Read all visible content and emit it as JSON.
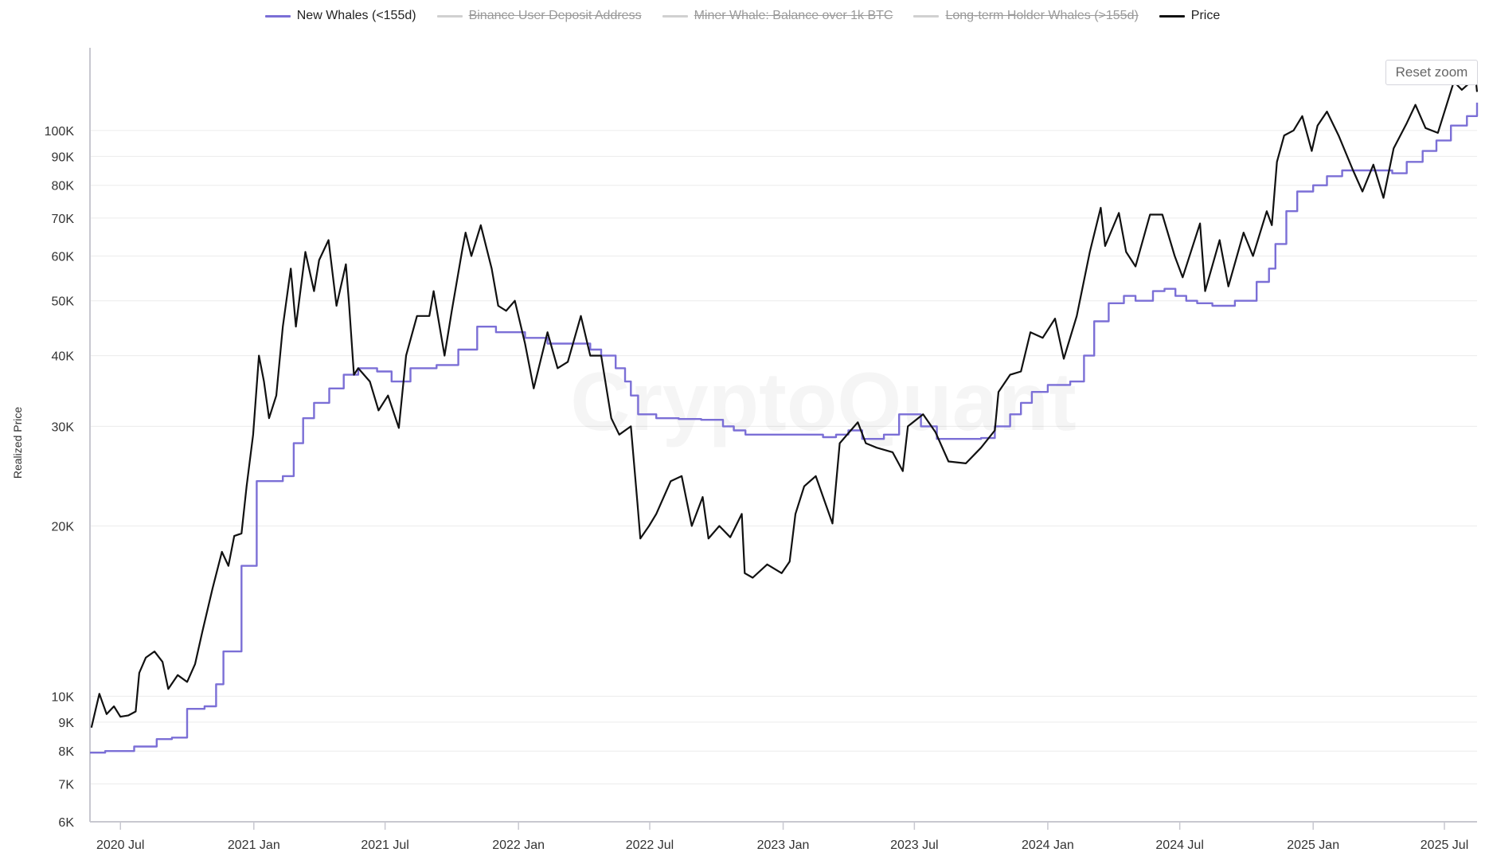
{
  "chart_data": {
    "type": "line",
    "title": "",
    "xlabel": "",
    "ylabel": "Realized Price",
    "y_scale": "log",
    "ylim": [
      6000,
      140000
    ],
    "xlim": [
      "2020-05-20",
      "2025-08-15"
    ],
    "grid": true,
    "legend_placement": "top-center",
    "watermark": "CryptoQuant",
    "reset_zoom_label": "Reset zoom",
    "y_ticks": [
      {
        "value": 6000,
        "label": "6K"
      },
      {
        "value": 7000,
        "label": "7K"
      },
      {
        "value": 8000,
        "label": "8K"
      },
      {
        "value": 9000,
        "label": "9K"
      },
      {
        "value": 10000,
        "label": "10K"
      },
      {
        "value": 20000,
        "label": "20K"
      },
      {
        "value": 30000,
        "label": "30K"
      },
      {
        "value": 40000,
        "label": "40K"
      },
      {
        "value": 50000,
        "label": "50K"
      },
      {
        "value": 60000,
        "label": "60K"
      },
      {
        "value": 70000,
        "label": "70K"
      },
      {
        "value": 80000,
        "label": "80K"
      },
      {
        "value": 90000,
        "label": "90K"
      },
      {
        "value": 100000,
        "label": "100K"
      }
    ],
    "x_ticks": [
      {
        "date": "2020-07-01",
        "label": "2020 Jul"
      },
      {
        "date": "2021-01-01",
        "label": "2021 Jan"
      },
      {
        "date": "2021-07-01",
        "label": "2021 Jul"
      },
      {
        "date": "2022-01-01",
        "label": "2022 Jan"
      },
      {
        "date": "2022-07-01",
        "label": "2022 Jul"
      },
      {
        "date": "2023-01-01",
        "label": "2023 Jan"
      },
      {
        "date": "2023-07-01",
        "label": "2023 Jul"
      },
      {
        "date": "2024-01-01",
        "label": "2024 Jan"
      },
      {
        "date": "2024-07-01",
        "label": "2024 Jul"
      },
      {
        "date": "2025-01-01",
        "label": "2025 Jan"
      },
      {
        "date": "2025-07-01",
        "label": "2025 Jul"
      }
    ],
    "legend": [
      {
        "name": "New Whales (<155d)",
        "color": "#7b6fd6",
        "visible": true
      },
      {
        "name": "Binance User Deposit Address",
        "color": "#cccccc",
        "visible": false
      },
      {
        "name": "Miner Whale: Balance over 1k BTC",
        "color": "#cccccc",
        "visible": false
      },
      {
        "name": "Long-term Holder Whales (>155d)",
        "color": "#cccccc",
        "visible": false
      },
      {
        "name": "Price",
        "color": "#111111",
        "visible": true
      }
    ],
    "series": [
      {
        "name": "New Whales (<155d)",
        "color": "#7b6fd6",
        "step": true,
        "points": [
          [
            "2020-05-20",
            7950
          ],
          [
            "2020-06-10",
            8000
          ],
          [
            "2020-07-20",
            8150
          ],
          [
            "2020-08-20",
            8400
          ],
          [
            "2020-09-10",
            8450
          ],
          [
            "2020-10-01",
            9500
          ],
          [
            "2020-10-25",
            9600
          ],
          [
            "2020-11-10",
            10500
          ],
          [
            "2020-11-20",
            12000
          ],
          [
            "2020-12-10",
            12000
          ],
          [
            "2020-12-15",
            17000
          ],
          [
            "2021-01-05",
            24000
          ],
          [
            "2021-01-25",
            24000
          ],
          [
            "2021-02-10",
            24500
          ],
          [
            "2021-02-25",
            28000
          ],
          [
            "2021-03-10",
            31000
          ],
          [
            "2021-03-25",
            33000
          ],
          [
            "2021-04-15",
            35000
          ],
          [
            "2021-05-05",
            37000
          ],
          [
            "2021-05-25",
            38000
          ],
          [
            "2021-06-20",
            37500
          ],
          [
            "2021-07-10",
            36000
          ],
          [
            "2021-08-05",
            38000
          ],
          [
            "2021-09-10",
            38500
          ],
          [
            "2021-10-10",
            41000
          ],
          [
            "2021-11-05",
            45000
          ],
          [
            "2021-12-01",
            44000
          ],
          [
            "2022-01-10",
            43000
          ],
          [
            "2022-02-10",
            42000
          ],
          [
            "2022-03-10",
            42000
          ],
          [
            "2022-04-10",
            41000
          ],
          [
            "2022-04-25",
            40000
          ],
          [
            "2022-05-15",
            38000
          ],
          [
            "2022-05-28",
            36000
          ],
          [
            "2022-06-05",
            34000
          ],
          [
            "2022-06-15",
            31500
          ],
          [
            "2022-07-10",
            31000
          ],
          [
            "2022-08-10",
            30900
          ],
          [
            "2022-09-10",
            30800
          ],
          [
            "2022-10-10",
            30000
          ],
          [
            "2022-10-25",
            29500
          ],
          [
            "2022-11-10",
            29000
          ],
          [
            "2022-12-10",
            29000
          ],
          [
            "2023-01-10",
            29000
          ],
          [
            "2023-02-10",
            29000
          ],
          [
            "2023-02-25",
            28700
          ],
          [
            "2023-03-15",
            29000
          ],
          [
            "2023-04-01",
            29500
          ],
          [
            "2023-04-20",
            28500
          ],
          [
            "2023-05-20",
            29000
          ],
          [
            "2023-06-10",
            31500
          ],
          [
            "2023-07-01",
            31500
          ],
          [
            "2023-07-10",
            30000
          ],
          [
            "2023-08-01",
            28500
          ],
          [
            "2023-09-01",
            28500
          ],
          [
            "2023-10-01",
            28600
          ],
          [
            "2023-10-20",
            30000
          ],
          [
            "2023-11-10",
            31500
          ],
          [
            "2023-11-25",
            33000
          ],
          [
            "2023-12-10",
            34500
          ],
          [
            "2024-01-01",
            35500
          ],
          [
            "2024-02-01",
            36000
          ],
          [
            "2024-02-20",
            40000
          ],
          [
            "2024-03-05",
            46000
          ],
          [
            "2024-03-25",
            49500
          ],
          [
            "2024-04-15",
            51000
          ],
          [
            "2024-05-01",
            50000
          ],
          [
            "2024-05-25",
            52000
          ],
          [
            "2024-06-10",
            52500
          ],
          [
            "2024-06-25",
            51000
          ],
          [
            "2024-07-10",
            50000
          ],
          [
            "2024-07-25",
            49500
          ],
          [
            "2024-08-15",
            49000
          ],
          [
            "2024-09-15",
            50000
          ],
          [
            "2024-10-15",
            54000
          ],
          [
            "2024-11-01",
            57000
          ],
          [
            "2024-11-10",
            63000
          ],
          [
            "2024-11-25",
            72000
          ],
          [
            "2024-12-10",
            78000
          ],
          [
            "2025-01-01",
            80000
          ],
          [
            "2025-01-20",
            83000
          ],
          [
            "2025-02-10",
            85000
          ],
          [
            "2025-03-01",
            85000
          ],
          [
            "2025-04-01",
            85000
          ],
          [
            "2025-04-20",
            84000
          ],
          [
            "2025-05-10",
            88000
          ],
          [
            "2025-06-01",
            92000
          ],
          [
            "2025-06-20",
            96000
          ],
          [
            "2025-07-10",
            102000
          ],
          [
            "2025-08-01",
            106000
          ],
          [
            "2025-08-15",
            112000
          ]
        ]
      },
      {
        "name": "Price",
        "color": "#111111",
        "step": false,
        "points": [
          [
            "2020-05-22",
            8800
          ],
          [
            "2020-05-28",
            9500
          ],
          [
            "2020-06-02",
            10100
          ],
          [
            "2020-06-12",
            9300
          ],
          [
            "2020-06-22",
            9600
          ],
          [
            "2020-07-01",
            9200
          ],
          [
            "2020-07-12",
            9250
          ],
          [
            "2020-07-22",
            9400
          ],
          [
            "2020-07-27",
            11000
          ],
          [
            "2020-08-05",
            11700
          ],
          [
            "2020-08-17",
            12000
          ],
          [
            "2020-08-28",
            11500
          ],
          [
            "2020-09-05",
            10300
          ],
          [
            "2020-09-18",
            10900
          ],
          [
            "2020-10-01",
            10600
          ],
          [
            "2020-10-12",
            11400
          ],
          [
            "2020-10-22",
            13000
          ],
          [
            "2020-11-05",
            15500
          ],
          [
            "2020-11-18",
            18000
          ],
          [
            "2020-11-27",
            17000
          ],
          [
            "2020-12-05",
            19200
          ],
          [
            "2020-12-15",
            19400
          ],
          [
            "2020-12-22",
            23500
          ],
          [
            "2020-12-31",
            29000
          ],
          [
            "2021-01-08",
            40000
          ],
          [
            "2021-01-15",
            36000
          ],
          [
            "2021-01-22",
            31000
          ],
          [
            "2021-02-01",
            34000
          ],
          [
            "2021-02-10",
            45000
          ],
          [
            "2021-02-21",
            57000
          ],
          [
            "2021-02-28",
            45000
          ],
          [
            "2021-03-13",
            61000
          ],
          [
            "2021-03-25",
            52000
          ],
          [
            "2021-04-01",
            59000
          ],
          [
            "2021-04-14",
            64000
          ],
          [
            "2021-04-25",
            49000
          ],
          [
            "2021-05-08",
            58000
          ],
          [
            "2021-05-12",
            50000
          ],
          [
            "2021-05-19",
            37000
          ],
          [
            "2021-05-25",
            38000
          ],
          [
            "2021-06-10",
            36000
          ],
          [
            "2021-06-22",
            32000
          ],
          [
            "2021-07-05",
            34000
          ],
          [
            "2021-07-20",
            29800
          ],
          [
            "2021-07-30",
            40000
          ],
          [
            "2021-08-14",
            47000
          ],
          [
            "2021-08-31",
            47000
          ],
          [
            "2021-09-06",
            52000
          ],
          [
            "2021-09-21",
            40000
          ],
          [
            "2021-10-01",
            48000
          ],
          [
            "2021-10-15",
            61000
          ],
          [
            "2021-10-20",
            66000
          ],
          [
            "2021-10-28",
            60000
          ],
          [
            "2021-11-10",
            68000
          ],
          [
            "2021-11-25",
            57000
          ],
          [
            "2021-12-04",
            49000
          ],
          [
            "2021-12-15",
            48000
          ],
          [
            "2021-12-27",
            50000
          ],
          [
            "2022-01-10",
            42000
          ],
          [
            "2022-01-22",
            35000
          ],
          [
            "2022-02-10",
            44000
          ],
          [
            "2022-02-24",
            38000
          ],
          [
            "2022-03-10",
            39000
          ],
          [
            "2022-03-28",
            47000
          ],
          [
            "2022-04-10",
            40000
          ],
          [
            "2022-04-25",
            40000
          ],
          [
            "2022-05-09",
            31000
          ],
          [
            "2022-05-20",
            29000
          ],
          [
            "2022-06-05",
            30000
          ],
          [
            "2022-06-14",
            22000
          ],
          [
            "2022-06-18",
            19000
          ],
          [
            "2022-06-30",
            20000
          ],
          [
            "2022-07-10",
            21000
          ],
          [
            "2022-07-30",
            24000
          ],
          [
            "2022-08-14",
            24500
          ],
          [
            "2022-08-28",
            20000
          ],
          [
            "2022-09-12",
            22500
          ],
          [
            "2022-09-20",
            19000
          ],
          [
            "2022-10-05",
            20000
          ],
          [
            "2022-10-20",
            19100
          ],
          [
            "2022-11-05",
            21000
          ],
          [
            "2022-11-09",
            16500
          ],
          [
            "2022-11-20",
            16200
          ],
          [
            "2022-12-10",
            17100
          ],
          [
            "2022-12-30",
            16500
          ],
          [
            "2023-01-10",
            17300
          ],
          [
            "2023-01-18",
            21000
          ],
          [
            "2023-01-30",
            23500
          ],
          [
            "2023-02-15",
            24500
          ],
          [
            "2023-03-10",
            20200
          ],
          [
            "2023-03-20",
            28000
          ],
          [
            "2023-04-14",
            30500
          ],
          [
            "2023-04-25",
            28000
          ],
          [
            "2023-05-10",
            27500
          ],
          [
            "2023-06-01",
            27000
          ],
          [
            "2023-06-15",
            25000
          ],
          [
            "2023-06-22",
            30000
          ],
          [
            "2023-07-13",
            31500
          ],
          [
            "2023-07-30",
            29300
          ],
          [
            "2023-08-17",
            26000
          ],
          [
            "2023-09-10",
            25800
          ],
          [
            "2023-10-01",
            27500
          ],
          [
            "2023-10-20",
            29500
          ],
          [
            "2023-10-25",
            34500
          ],
          [
            "2023-11-10",
            37000
          ],
          [
            "2023-11-25",
            37500
          ],
          [
            "2023-12-08",
            44000
          ],
          [
            "2023-12-25",
            43000
          ],
          [
            "2024-01-11",
            46500
          ],
          [
            "2024-01-23",
            39500
          ],
          [
            "2024-02-10",
            47000
          ],
          [
            "2024-02-28",
            61000
          ],
          [
            "2024-03-14",
            73000
          ],
          [
            "2024-03-20",
            62500
          ],
          [
            "2024-04-08",
            71500
          ],
          [
            "2024-04-18",
            61000
          ],
          [
            "2024-05-01",
            57500
          ],
          [
            "2024-05-21",
            71000
          ],
          [
            "2024-06-07",
            71000
          ],
          [
            "2024-06-24",
            60000
          ],
          [
            "2024-07-05",
            55000
          ],
          [
            "2024-07-29",
            68500
          ],
          [
            "2024-08-05",
            52000
          ],
          [
            "2024-08-25",
            64000
          ],
          [
            "2024-09-06",
            53000
          ],
          [
            "2024-09-27",
            66000
          ],
          [
            "2024-10-10",
            60000
          ],
          [
            "2024-10-29",
            72000
          ],
          [
            "2024-11-05",
            68000
          ],
          [
            "2024-11-12",
            88000
          ],
          [
            "2024-11-22",
            98000
          ],
          [
            "2024-12-05",
            100000
          ],
          [
            "2024-12-17",
            106000
          ],
          [
            "2024-12-30",
            92000
          ],
          [
            "2025-01-07",
            102000
          ],
          [
            "2025-01-20",
            108000
          ],
          [
            "2025-02-05",
            98000
          ],
          [
            "2025-02-25",
            85000
          ],
          [
            "2025-03-10",
            78000
          ],
          [
            "2025-03-25",
            87000
          ],
          [
            "2025-04-08",
            76000
          ],
          [
            "2025-04-22",
            93000
          ],
          [
            "2025-05-10",
            103000
          ],
          [
            "2025-05-22",
            111000
          ],
          [
            "2025-06-05",
            101000
          ],
          [
            "2025-06-22",
            99000
          ],
          [
            "2025-07-14",
            122000
          ],
          [
            "2025-07-25",
            118000
          ],
          [
            "2025-08-13",
            124000
          ],
          [
            "2025-08-15",
            117000
          ]
        ]
      }
    ]
  }
}
